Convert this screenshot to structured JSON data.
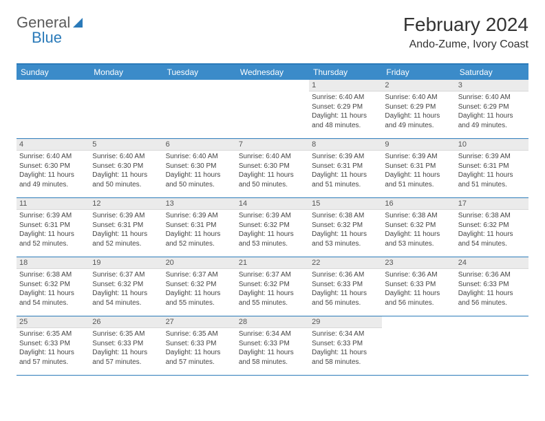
{
  "brand": {
    "part1": "General",
    "part2": "Blue"
  },
  "title": "February 2024",
  "location": "Ando-Zume, Ivory Coast",
  "colors": {
    "header_bg": "#3b8bc9",
    "border": "#2a7ab9",
    "daynum_bg": "#ebebeb",
    "page_bg": "#ffffff",
    "text": "#333333"
  },
  "weekdays": [
    "Sunday",
    "Monday",
    "Tuesday",
    "Wednesday",
    "Thursday",
    "Friday",
    "Saturday"
  ],
  "leading_blanks": 4,
  "days": [
    {
      "n": "1",
      "sunrise": "6:40 AM",
      "sunset": "6:29 PM",
      "daylight": "11 hours and 48 minutes."
    },
    {
      "n": "2",
      "sunrise": "6:40 AM",
      "sunset": "6:29 PM",
      "daylight": "11 hours and 49 minutes."
    },
    {
      "n": "3",
      "sunrise": "6:40 AM",
      "sunset": "6:29 PM",
      "daylight": "11 hours and 49 minutes."
    },
    {
      "n": "4",
      "sunrise": "6:40 AM",
      "sunset": "6:30 PM",
      "daylight": "11 hours and 49 minutes."
    },
    {
      "n": "5",
      "sunrise": "6:40 AM",
      "sunset": "6:30 PM",
      "daylight": "11 hours and 50 minutes."
    },
    {
      "n": "6",
      "sunrise": "6:40 AM",
      "sunset": "6:30 PM",
      "daylight": "11 hours and 50 minutes."
    },
    {
      "n": "7",
      "sunrise": "6:40 AM",
      "sunset": "6:30 PM",
      "daylight": "11 hours and 50 minutes."
    },
    {
      "n": "8",
      "sunrise": "6:39 AM",
      "sunset": "6:31 PM",
      "daylight": "11 hours and 51 minutes."
    },
    {
      "n": "9",
      "sunrise": "6:39 AM",
      "sunset": "6:31 PM",
      "daylight": "11 hours and 51 minutes."
    },
    {
      "n": "10",
      "sunrise": "6:39 AM",
      "sunset": "6:31 PM",
      "daylight": "11 hours and 51 minutes."
    },
    {
      "n": "11",
      "sunrise": "6:39 AM",
      "sunset": "6:31 PM",
      "daylight": "11 hours and 52 minutes."
    },
    {
      "n": "12",
      "sunrise": "6:39 AM",
      "sunset": "6:31 PM",
      "daylight": "11 hours and 52 minutes."
    },
    {
      "n": "13",
      "sunrise": "6:39 AM",
      "sunset": "6:31 PM",
      "daylight": "11 hours and 52 minutes."
    },
    {
      "n": "14",
      "sunrise": "6:39 AM",
      "sunset": "6:32 PM",
      "daylight": "11 hours and 53 minutes."
    },
    {
      "n": "15",
      "sunrise": "6:38 AM",
      "sunset": "6:32 PM",
      "daylight": "11 hours and 53 minutes."
    },
    {
      "n": "16",
      "sunrise": "6:38 AM",
      "sunset": "6:32 PM",
      "daylight": "11 hours and 53 minutes."
    },
    {
      "n": "17",
      "sunrise": "6:38 AM",
      "sunset": "6:32 PM",
      "daylight": "11 hours and 54 minutes."
    },
    {
      "n": "18",
      "sunrise": "6:38 AM",
      "sunset": "6:32 PM",
      "daylight": "11 hours and 54 minutes."
    },
    {
      "n": "19",
      "sunrise": "6:37 AM",
      "sunset": "6:32 PM",
      "daylight": "11 hours and 54 minutes."
    },
    {
      "n": "20",
      "sunrise": "6:37 AM",
      "sunset": "6:32 PM",
      "daylight": "11 hours and 55 minutes."
    },
    {
      "n": "21",
      "sunrise": "6:37 AM",
      "sunset": "6:32 PM",
      "daylight": "11 hours and 55 minutes."
    },
    {
      "n": "22",
      "sunrise": "6:36 AM",
      "sunset": "6:33 PM",
      "daylight": "11 hours and 56 minutes."
    },
    {
      "n": "23",
      "sunrise": "6:36 AM",
      "sunset": "6:33 PM",
      "daylight": "11 hours and 56 minutes."
    },
    {
      "n": "24",
      "sunrise": "6:36 AM",
      "sunset": "6:33 PM",
      "daylight": "11 hours and 56 minutes."
    },
    {
      "n": "25",
      "sunrise": "6:35 AM",
      "sunset": "6:33 PM",
      "daylight": "11 hours and 57 minutes."
    },
    {
      "n": "26",
      "sunrise": "6:35 AM",
      "sunset": "6:33 PM",
      "daylight": "11 hours and 57 minutes."
    },
    {
      "n": "27",
      "sunrise": "6:35 AM",
      "sunset": "6:33 PM",
      "daylight": "11 hours and 57 minutes."
    },
    {
      "n": "28",
      "sunrise": "6:34 AM",
      "sunset": "6:33 PM",
      "daylight": "11 hours and 58 minutes."
    },
    {
      "n": "29",
      "sunrise": "6:34 AM",
      "sunset": "6:33 PM",
      "daylight": "11 hours and 58 minutes."
    }
  ],
  "labels": {
    "sunrise_prefix": "Sunrise: ",
    "sunset_prefix": "Sunset: ",
    "daylight_prefix": "Daylight: "
  }
}
